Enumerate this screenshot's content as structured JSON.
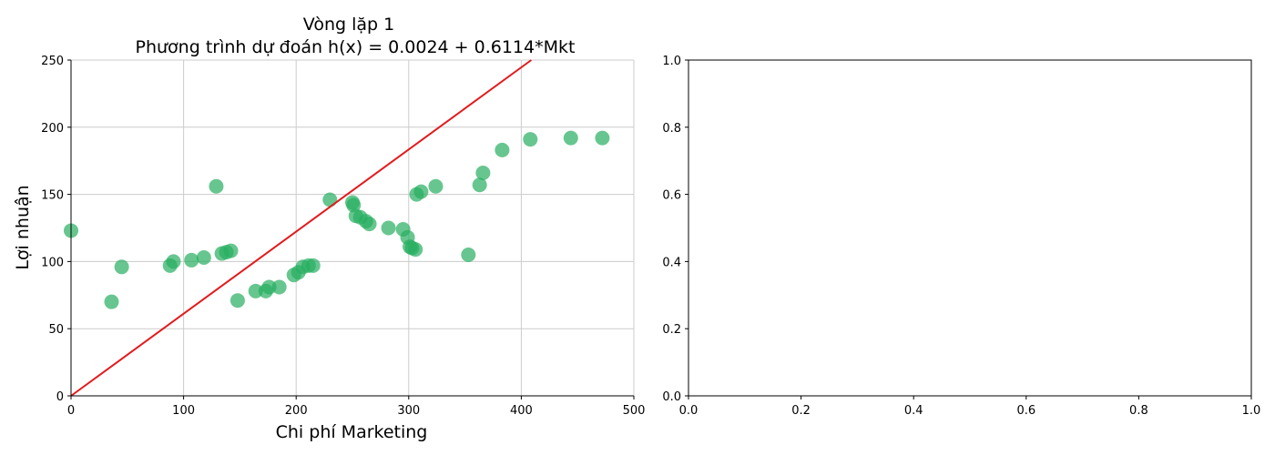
{
  "chart_data": [
    {
      "type": "scatter",
      "title": "Vòng lặp 1",
      "subtitle": "Phương trình dự đoán h(x) = 0.0024 + 0.6114*Mkt",
      "xlabel": "Chi phí Marketing",
      "ylabel": "Lợi nhuận",
      "xlim": [
        0,
        500
      ],
      "ylim": [
        0,
        250
      ],
      "xticks": [
        0,
        100,
        200,
        300,
        400,
        500
      ],
      "yticks": [
        0,
        50,
        100,
        150,
        200,
        250
      ],
      "xtick_labels": [
        "0",
        "100",
        "200",
        "300",
        "400",
        "500"
      ],
      "ytick_labels": [
        "0",
        "50",
        "100",
        "150",
        "200",
        "250"
      ],
      "grid": true,
      "spines": "left-bottom",
      "colors": {
        "points": "#27ae60",
        "line": "#e31a1c",
        "grid": "#cccccc"
      },
      "series": [
        {
          "kind": "points",
          "x": [
            0,
            36,
            45,
            88,
            91,
            107,
            118,
            129,
            134,
            138,
            142,
            148,
            164,
            173,
            176,
            185,
            198,
            202,
            206,
            211,
            215,
            230,
            250,
            251,
            253,
            257,
            262,
            265,
            282,
            295,
            299,
            301,
            303,
            306,
            307,
            311,
            324,
            353,
            363,
            366,
            383,
            408,
            444,
            472
          ],
          "y": [
            123,
            70,
            96,
            97,
            100,
            101,
            103,
            156,
            106,
            107,
            108,
            71,
            78,
            78,
            81,
            81,
            90,
            92,
            96,
            97,
            97,
            146,
            144,
            142,
            134,
            133,
            130,
            128,
            125,
            124,
            118,
            111,
            110,
            109,
            150,
            152,
            156,
            105,
            157,
            166,
            183,
            191,
            192,
            192
          ]
        },
        {
          "kind": "regression-line",
          "intercept": 0.0024,
          "slope": 0.6114
        }
      ]
    },
    {
      "type": "scatter",
      "xlim": [
        0,
        1
      ],
      "ylim": [
        0,
        1
      ],
      "xticks": [
        0,
        0.2,
        0.4,
        0.6,
        0.8,
        1.0
      ],
      "yticks": [
        0,
        0.2,
        0.4,
        0.6,
        0.8,
        1.0
      ],
      "xtick_labels": [
        "0.0",
        "0.2",
        "0.4",
        "0.6",
        "0.8",
        "1.0"
      ],
      "ytick_labels": [
        "0.0",
        "0.2",
        "0.4",
        "0.6",
        "0.8",
        "1.0"
      ],
      "grid": false,
      "spines": "all",
      "series": []
    }
  ]
}
